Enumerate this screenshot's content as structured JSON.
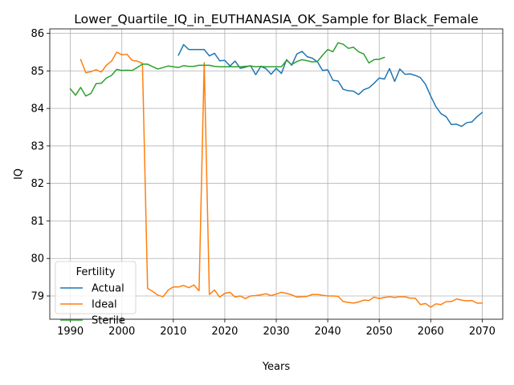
{
  "chart_data": {
    "type": "line",
    "title": "Lower_Quartile_IQ_in_EUTHANASIA_OK_Sample for Black_Female",
    "xlabel": "Years",
    "ylabel": "IQ",
    "xlim": [
      1986,
      2074
    ],
    "ylim": [
      78.38,
      86.12
    ],
    "xticks": [
      1990,
      2000,
      2010,
      2020,
      2030,
      2040,
      2050,
      2060,
      2070
    ],
    "yticks": [
      79,
      80,
      81,
      82,
      83,
      84,
      85,
      86
    ],
    "grid": true,
    "legend": {
      "title": "Fertility",
      "position": "lower-left"
    },
    "series": [
      {
        "name": "Actual",
        "color": "#1f77b4",
        "x": [
          2011,
          2012,
          2013,
          2014,
          2015,
          2016,
          2017,
          2018,
          2019,
          2020,
          2021,
          2022,
          2023,
          2024,
          2025,
          2026,
          2027,
          2028,
          2029,
          2030,
          2031,
          2032,
          2033,
          2034,
          2035,
          2036,
          2037,
          2038,
          2039,
          2040,
          2041,
          2042,
          2043,
          2044,
          2045,
          2046,
          2047,
          2048,
          2049,
          2050,
          2051,
          2052,
          2053,
          2054,
          2055,
          2056,
          2057,
          2058,
          2059,
          2060,
          2061,
          2062,
          2063,
          2064,
          2065,
          2066,
          2067,
          2068,
          2069,
          2070
        ],
        "y": [
          85.42,
          85.7,
          85.57,
          85.57,
          85.57,
          85.57,
          85.4,
          85.47,
          85.27,
          85.28,
          85.13,
          85.26,
          85.07,
          85.1,
          85.14,
          84.9,
          85.12,
          85.06,
          84.91,
          85.07,
          84.93,
          85.3,
          85.15,
          85.45,
          85.52,
          85.38,
          85.34,
          85.24,
          85.01,
          85.03,
          84.75,
          84.73,
          84.51,
          84.47,
          84.46,
          84.37,
          84.5,
          84.55,
          84.67,
          84.81,
          84.78,
          85.06,
          84.72,
          85.05,
          84.91,
          84.92,
          84.88,
          84.82,
          84.64,
          84.33,
          84.05,
          83.86,
          83.78,
          83.57,
          83.58,
          83.52,
          83.62,
          83.64,
          83.78,
          83.89
        ]
      },
      {
        "name": "Ideal",
        "color": "#ff7f0e",
        "x": [
          1992,
          1993,
          1994,
          1995,
          1996,
          1997,
          1998,
          1999,
          2000,
          2001,
          2002,
          2003,
          2004,
          2005,
          2006,
          2007,
          2008,
          2009,
          2010,
          2011,
          2012,
          2013,
          2014,
          2015,
          2016,
          2017,
          2018,
          2019,
          2020,
          2021,
          2022,
          2023,
          2024,
          2025,
          2026,
          2027,
          2028,
          2029,
          2030,
          2031,
          2032,
          2033,
          2034,
          2035,
          2036,
          2037,
          2038,
          2039,
          2040,
          2041,
          2042,
          2043,
          2044,
          2045,
          2046,
          2047,
          2048,
          2049,
          2050,
          2051,
          2052,
          2053,
          2054,
          2055,
          2056,
          2057,
          2058,
          2059,
          2060,
          2061,
          2062,
          2063,
          2064,
          2065,
          2066,
          2067,
          2068,
          2069,
          2070
        ],
        "y": [
          85.3,
          84.95,
          84.98,
          85.03,
          84.97,
          85.15,
          85.26,
          85.5,
          85.43,
          85.44,
          85.28,
          85.26,
          85.2,
          79.2,
          79.12,
          79.02,
          78.98,
          79.16,
          79.24,
          79.24,
          79.28,
          79.22,
          79.29,
          79.14,
          85.22,
          79.04,
          79.16,
          78.97,
          79.07,
          79.1,
          78.97,
          79.0,
          78.93,
          79.0,
          79.01,
          79.03,
          79.06,
          79.01,
          79.05,
          79.1,
          79.07,
          79.03,
          78.97,
          78.98,
          78.99,
          79.04,
          79.04,
          79.02,
          79.0,
          79.0,
          78.99,
          78.85,
          78.83,
          78.81,
          78.84,
          78.89,
          78.88,
          78.97,
          78.93,
          78.96,
          78.98,
          78.96,
          78.98,
          78.98,
          78.94,
          78.94,
          78.77,
          78.8,
          78.7,
          78.79,
          78.77,
          78.85,
          78.85,
          78.92,
          78.89,
          78.87,
          78.88,
          78.81,
          78.81
        ]
      },
      {
        "name": "Sterile",
        "color": "#2ca02c",
        "x": [
          1990,
          1991,
          1992,
          1993,
          1994,
          1995,
          1996,
          1997,
          1998,
          1999,
          2000,
          2001,
          2002,
          2003,
          2004,
          2005,
          2006,
          2007,
          2008,
          2009,
          2010,
          2011,
          2012,
          2013,
          2014,
          2015,
          2016,
          2017,
          2018,
          2019,
          2020,
          2021,
          2022,
          2023,
          2024,
          2025,
          2026,
          2027,
          2028,
          2029,
          2030,
          2031,
          2032,
          2033,
          2034,
          2035,
          2036,
          2037,
          2038,
          2039,
          2040,
          2041,
          2042,
          2043,
          2044,
          2045,
          2046,
          2047,
          2048,
          2049,
          2050,
          2051
        ],
        "y": [
          84.52,
          84.35,
          84.56,
          84.33,
          84.4,
          84.66,
          84.67,
          84.81,
          84.88,
          85.04,
          85.01,
          85.02,
          85.01,
          85.09,
          85.18,
          85.18,
          85.11,
          85.05,
          85.09,
          85.13,
          85.11,
          85.09,
          85.14,
          85.12,
          85.12,
          85.15,
          85.15,
          85.15,
          85.12,
          85.11,
          85.11,
          85.11,
          85.11,
          85.11,
          85.12,
          85.13,
          85.11,
          85.12,
          85.11,
          85.11,
          85.11,
          85.11,
          85.28,
          85.17,
          85.25,
          85.3,
          85.27,
          85.24,
          85.25,
          85.42,
          85.57,
          85.51,
          85.75,
          85.71,
          85.6,
          85.63,
          85.51,
          85.45,
          85.21,
          85.3,
          85.31,
          85.36
        ]
      }
    ]
  }
}
